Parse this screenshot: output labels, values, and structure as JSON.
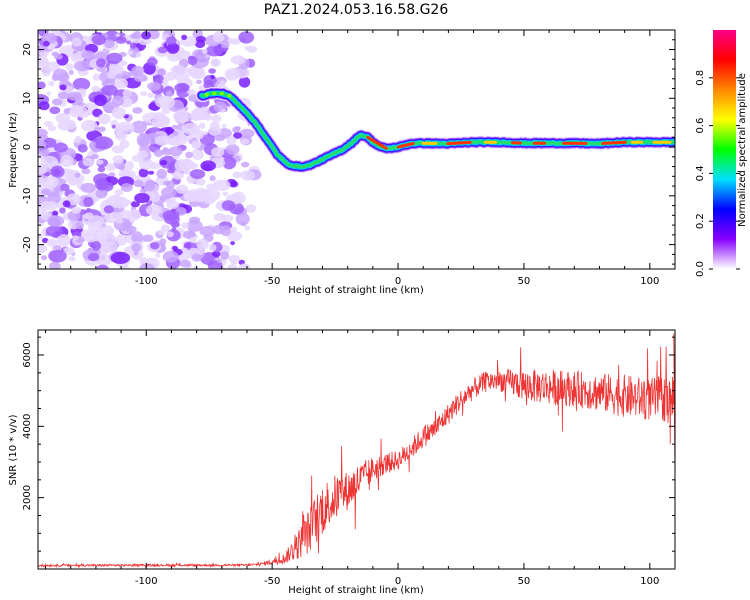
{
  "figure_title": "PAZ1.2024.053.16.58.G26",
  "chart_data": [
    {
      "type": "heatmap",
      "xlabel": "Height of straight line (km)",
      "ylabel": "Frequency (Hz)",
      "xlim": [
        -143,
        110
      ],
      "ylim": [
        -25,
        24
      ],
      "x_ticks": [
        -100,
        -50,
        0,
        50,
        100
      ],
      "x_tick_labels": [
        "-100",
        "-50",
        "0",
        "50",
        "100"
      ],
      "y_ticks": [
        -20,
        -10,
        0,
        10,
        20
      ],
      "y_tick_labels": [
        "-20",
        "-10",
        "0",
        "10",
        "20"
      ],
      "ridge": {
        "x": [
          -78,
          -74,
          -70,
          -67,
          -64,
          -60,
          -56,
          -52,
          -48,
          -44,
          -40,
          -37,
          -34,
          -30,
          -26,
          -22,
          -18,
          -15,
          -12,
          -10,
          -7,
          -4,
          0,
          5,
          10,
          20,
          30,
          40,
          50,
          60,
          70,
          80,
          90,
          100,
          110
        ],
        "frequency": [
          10.5,
          11,
          11,
          10.5,
          9,
          7,
          4.5,
          1.5,
          -1.5,
          -3.5,
          -4,
          -4,
          -3.5,
          -2.5,
          -1.5,
          -0.5,
          1,
          2.5,
          2,
          1,
          0,
          -0.3,
          0,
          0.7,
          0.8,
          0.7,
          1,
          1,
          0.8,
          0.8,
          0.8,
          0.7,
          1,
          1,
          1
        ]
      },
      "noise_region": [
        -143,
        -55
      ],
      "colorbar": {
        "label": "Normalized spectral amplitude",
        "range": [
          0,
          1
        ],
        "ticks": [
          0.0,
          0.2,
          0.4,
          0.6,
          0.8
        ],
        "tick_labels": [
          "0.0",
          "0.2",
          "0.4",
          "0.6",
          "0.8"
        ],
        "colors": [
          "#ffffff",
          "#8800ff",
          "#0000ff",
          "#00e0ff",
          "#00ff00",
          "#ffff00",
          "#ff8800",
          "#ff0000",
          "#ff0088"
        ]
      }
    },
    {
      "type": "line",
      "xlabel": "Height of straight line (km)",
      "ylabel": "SNR (10 * v/v)",
      "xlim": [
        -143,
        110
      ],
      "ylim": [
        0,
        6700
      ],
      "x_ticks": [
        -100,
        -50,
        0,
        50,
        100
      ],
      "x_tick_labels": [
        "-100",
        "-50",
        "0",
        "50",
        "100"
      ],
      "y_ticks": [
        2000,
        4000,
        6000
      ],
      "y_tick_labels": [
        "2000",
        "4000",
        "6000"
      ],
      "color": "#ee3333",
      "envelope": {
        "x": [
          -143,
          -60,
          -55,
          -50,
          -45,
          -40,
          -35,
          -30,
          -25,
          -20,
          -15,
          -10,
          -5,
          0,
          5,
          10,
          15,
          20,
          25,
          30,
          35,
          40,
          50,
          60,
          70,
          80,
          90,
          100,
          110
        ],
        "y": [
          100,
          110,
          130,
          200,
          300,
          650,
          1100,
          1700,
          2000,
          2200,
          2500,
          2800,
          2950,
          3050,
          3350,
          3700,
          3950,
          4350,
          4750,
          5050,
          5250,
          5300,
          5150,
          5100,
          5050,
          4950,
          4850,
          4750,
          4800
        ],
        "noise": [
          30,
          30,
          40,
          80,
          150,
          400,
          650,
          750,
          650,
          550,
          500,
          350,
          300,
          280,
          300,
          300,
          300,
          300,
          300,
          300,
          300,
          300,
          450,
          500,
          500,
          550,
          600,
          600,
          700
        ]
      }
    }
  ]
}
